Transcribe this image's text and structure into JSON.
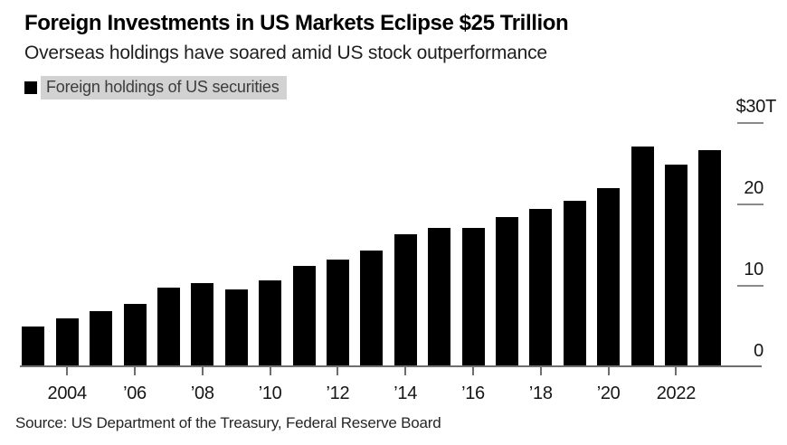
{
  "header": {
    "title": "Foreign Investments in US Markets Eclipse $25 Trillion",
    "subtitle": "Overseas holdings have soared amid US stock outperformance",
    "legend": {
      "label": "Foreign holdings of US securities",
      "swatch_color": "#000000",
      "highlight_color": "#d2d2d2",
      "text_color": "#3c3c3c"
    }
  },
  "chart_data": {
    "type": "bar",
    "title": "Foreign Investments in US Markets Eclipse $25 Trillion",
    "subtitle": "Overseas holdings have soared amid US stock outperformance",
    "series_name": "Foreign holdings of US securities",
    "unit": "trillions of US dollars",
    "categories": [
      2003,
      2004,
      2005,
      2006,
      2007,
      2008,
      2009,
      2010,
      2011,
      2012,
      2013,
      2014,
      2015,
      2016,
      2017,
      2018,
      2019,
      2020,
      2021,
      2022,
      2023
    ],
    "values": [
      5.0,
      6.0,
      6.9,
      7.8,
      9.8,
      10.3,
      9.6,
      10.7,
      12.4,
      13.2,
      14.3,
      16.3,
      17.1,
      17.1,
      18.4,
      19.4,
      20.5,
      22.0,
      27.1,
      24.9,
      26.7
    ],
    "ylim": [
      0,
      30
    ],
    "y_ticks": [
      {
        "value": 30,
        "label": "$30T"
      },
      {
        "value": 20,
        "label": "20"
      },
      {
        "value": 10,
        "label": "10"
      },
      {
        "value": 0,
        "label": "0"
      }
    ],
    "x_ticks": [
      {
        "year": 2004,
        "label": "2004"
      },
      {
        "year": 2006,
        "label": "’06"
      },
      {
        "year": 2008,
        "label": "’08"
      },
      {
        "year": 2010,
        "label": "’10"
      },
      {
        "year": 2012,
        "label": "’12"
      },
      {
        "year": 2014,
        "label": "’14"
      },
      {
        "year": 2016,
        "label": "’16"
      },
      {
        "year": 2018,
        "label": "’18"
      },
      {
        "year": 2020,
        "label": "’20"
      },
      {
        "year": 2022,
        "label": "2022"
      }
    ],
    "bar_color": "#000000",
    "axis_color": "#6e6e6e",
    "gridlines": false,
    "legend_position": "top-left",
    "value_axis_side": "right"
  },
  "footer": {
    "source": "Source: US Department of the Treasury, Federal Reserve Board"
  }
}
